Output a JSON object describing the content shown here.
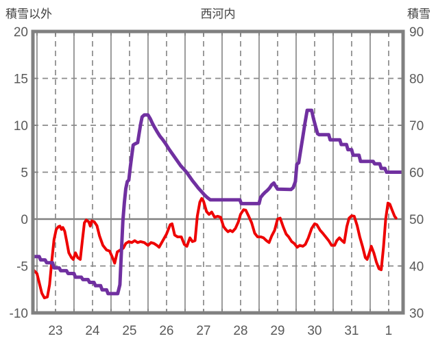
{
  "header": {
    "left_axis_title": "積雪以外",
    "chart_title": "西河内",
    "right_axis_title": "積雪"
  },
  "chart_data": {
    "type": "line",
    "title": "西河内",
    "x_axis": {
      "start": 22.89,
      "end": 32.89,
      "day_gridlines": [
        23,
        24,
        25,
        26,
        27,
        28,
        29,
        30,
        31,
        32
      ],
      "day_labels": [
        "23",
        "24",
        "25",
        "26",
        "27",
        "28",
        "29",
        "30",
        "31",
        "1"
      ],
      "grid_style": "solid at day boundaries, dashed at half days, inward ticks top and bottom"
    },
    "y_left": {
      "label": "積雪以外",
      "min": -10,
      "max": 20,
      "ticks": [
        20,
        15,
        10,
        5,
        0,
        -5,
        -10
      ],
      "zero_line": "solid gray, other gridlines dashed"
    },
    "y_right": {
      "label": "積雪",
      "min": 30,
      "max": 90,
      "ticks": [
        90,
        80,
        70,
        60,
        50,
        40,
        30
      ]
    },
    "series": [
      {
        "name": "積雪以外",
        "axis": "left",
        "color": "#ee0000",
        "points": [
          [
            22.9,
            -5.4
          ],
          [
            23.0,
            -5.8
          ],
          [
            23.05,
            -6.6
          ],
          [
            23.13,
            -7.9
          ],
          [
            23.2,
            -8.4
          ],
          [
            23.28,
            -8.3
          ],
          [
            23.34,
            -7.0
          ],
          [
            23.4,
            -4.5
          ],
          [
            23.46,
            -2.2
          ],
          [
            23.52,
            -1.1
          ],
          [
            23.58,
            -0.8
          ],
          [
            23.62,
            -0.75
          ],
          [
            23.66,
            -1.1
          ],
          [
            23.7,
            -0.9
          ],
          [
            23.75,
            -1.3
          ],
          [
            23.8,
            -2.3
          ],
          [
            23.86,
            -3.6
          ],
          [
            23.93,
            -4.1
          ],
          [
            23.98,
            -4.3
          ],
          [
            24.04,
            -3.6
          ],
          [
            24.1,
            -4.1
          ],
          [
            24.17,
            -4.3
          ],
          [
            24.22,
            -2.5
          ],
          [
            24.28,
            -0.4
          ],
          [
            24.33,
            -0.1
          ],
          [
            24.4,
            -0.3
          ],
          [
            24.44,
            -0.75
          ],
          [
            24.48,
            -0.2
          ],
          [
            24.55,
            -0.3
          ],
          [
            24.62,
            -0.7
          ],
          [
            24.69,
            -1.8
          ],
          [
            24.78,
            -2.8
          ],
          [
            24.88,
            -3.3
          ],
          [
            24.96,
            -3.4
          ],
          [
            25.04,
            -4.1
          ],
          [
            25.1,
            -4.7
          ],
          [
            25.17,
            -3.5
          ],
          [
            25.25,
            -3.3
          ],
          [
            25.33,
            -3.1
          ],
          [
            25.4,
            -2.6
          ],
          [
            25.48,
            -2.4
          ],
          [
            25.56,
            -2.5
          ],
          [
            25.64,
            -2.3
          ],
          [
            25.72,
            -2.5
          ],
          [
            25.8,
            -2.4
          ],
          [
            25.9,
            -2.5
          ],
          [
            26.0,
            -2.8
          ],
          [
            26.08,
            -2.5
          ],
          [
            26.16,
            -2.6
          ],
          [
            26.24,
            -2.8
          ],
          [
            26.3,
            -3.0
          ],
          [
            26.4,
            -2.3
          ],
          [
            26.5,
            -1.6
          ],
          [
            26.6,
            -0.6
          ],
          [
            26.65,
            -0.5
          ],
          [
            26.72,
            -1.7
          ],
          [
            26.8,
            -1.9
          ],
          [
            26.9,
            -1.9
          ],
          [
            26.98,
            -2.7
          ],
          [
            27.05,
            -2.9
          ],
          [
            27.13,
            -2.0
          ],
          [
            27.2,
            -2.4
          ],
          [
            27.27,
            -2.3
          ],
          [
            27.33,
            0.3
          ],
          [
            27.4,
            1.8
          ],
          [
            27.45,
            2.2
          ],
          [
            27.5,
            1.9
          ],
          [
            27.58,
            0.8
          ],
          [
            27.65,
            0.5
          ],
          [
            27.72,
            0.75
          ],
          [
            27.8,
            0.2
          ],
          [
            27.88,
            0.3
          ],
          [
            27.96,
            0.2
          ],
          [
            28.04,
            -0.8
          ],
          [
            28.1,
            -1.1
          ],
          [
            28.16,
            -1.35
          ],
          [
            28.22,
            -1.2
          ],
          [
            28.28,
            -1.35
          ],
          [
            28.36,
            -1.0
          ],
          [
            28.44,
            -0.3
          ],
          [
            28.5,
            0.5
          ],
          [
            28.58,
            1.0
          ],
          [
            28.64,
            0.95
          ],
          [
            28.72,
            0.3
          ],
          [
            28.8,
            -0.4
          ],
          [
            28.88,
            -1.5
          ],
          [
            28.96,
            -1.9
          ],
          [
            29.05,
            -1.9
          ],
          [
            29.12,
            -2.0
          ],
          [
            29.2,
            -2.3
          ],
          [
            29.27,
            -2.5
          ],
          [
            29.34,
            -1.8
          ],
          [
            29.42,
            -1.2
          ],
          [
            29.5,
            0.0
          ],
          [
            29.57,
            0.1
          ],
          [
            29.65,
            -0.8
          ],
          [
            29.73,
            -1.6
          ],
          [
            29.8,
            -1.9
          ],
          [
            29.88,
            -2.4
          ],
          [
            29.95,
            -2.6
          ],
          [
            30.03,
            -3.0
          ],
          [
            30.1,
            -2.8
          ],
          [
            30.18,
            -2.9
          ],
          [
            30.25,
            -2.7
          ],
          [
            30.33,
            -2.0
          ],
          [
            30.42,
            -1.0
          ],
          [
            30.5,
            -0.5
          ],
          [
            30.56,
            -0.6
          ],
          [
            30.65,
            -1.2
          ],
          [
            30.72,
            -1.5
          ],
          [
            30.8,
            -1.9
          ],
          [
            30.88,
            -2.3
          ],
          [
            30.96,
            -2.8
          ],
          [
            31.04,
            -2.8
          ],
          [
            31.1,
            -2.3
          ],
          [
            31.17,
            -2.0
          ],
          [
            31.24,
            -2.3
          ],
          [
            31.3,
            -2.5
          ],
          [
            31.37,
            -0.8
          ],
          [
            31.43,
            0.1
          ],
          [
            31.5,
            0.35
          ],
          [
            31.57,
            0.3
          ],
          [
            31.65,
            -0.7
          ],
          [
            31.72,
            -1.9
          ],
          [
            31.8,
            -3.0
          ],
          [
            31.87,
            -4.1
          ],
          [
            31.92,
            -4.3
          ],
          [
            31.98,
            -3.6
          ],
          [
            32.03,
            -2.9
          ],
          [
            32.1,
            -3.6
          ],
          [
            32.17,
            -4.6
          ],
          [
            32.24,
            -5.3
          ],
          [
            32.3,
            -5.4
          ],
          [
            32.36,
            -3.0
          ],
          [
            32.42,
            0.0
          ],
          [
            32.48,
            1.7
          ],
          [
            32.53,
            1.6
          ],
          [
            32.6,
            0.9
          ],
          [
            32.66,
            0.3
          ],
          [
            32.7,
            0.1
          ]
        ]
      },
      {
        "name": "積雪",
        "axis": "right",
        "color": "#7030a0",
        "points": [
          [
            22.9,
            42
          ],
          [
            23.06,
            42
          ],
          [
            23.1,
            41.3
          ],
          [
            23.22,
            41.3
          ],
          [
            23.26,
            40.7
          ],
          [
            23.42,
            40.7
          ],
          [
            23.46,
            39.6
          ],
          [
            23.6,
            39.6
          ],
          [
            23.64,
            39.0
          ],
          [
            23.8,
            39.0
          ],
          [
            23.84,
            38.4
          ],
          [
            24.0,
            38.4
          ],
          [
            24.04,
            37.6
          ],
          [
            24.2,
            37.6
          ],
          [
            24.24,
            37.1
          ],
          [
            24.38,
            37.1
          ],
          [
            24.42,
            36.5
          ],
          [
            24.54,
            36.5
          ],
          [
            24.58,
            35.8
          ],
          [
            24.72,
            35.8
          ],
          [
            24.76,
            34.9
          ],
          [
            24.88,
            34.9
          ],
          [
            24.92,
            34.1
          ],
          [
            25.18,
            34.1
          ],
          [
            25.24,
            36.0
          ],
          [
            25.28,
            43.0
          ],
          [
            25.32,
            49.5
          ],
          [
            25.36,
            53.5
          ],
          [
            25.4,
            56.5
          ],
          [
            25.44,
            58.0
          ],
          [
            25.48,
            58.3
          ],
          [
            25.52,
            61.0
          ],
          [
            25.56,
            63.5
          ],
          [
            25.6,
            65.8
          ],
          [
            25.64,
            66.0
          ],
          [
            25.72,
            66.3
          ],
          [
            25.76,
            68.3
          ],
          [
            25.8,
            70.2
          ],
          [
            25.84,
            71.8
          ],
          [
            25.9,
            72.2
          ],
          [
            26.0,
            72.2
          ],
          [
            26.06,
            71.4
          ],
          [
            26.12,
            70.4
          ],
          [
            26.18,
            69.5
          ],
          [
            26.24,
            68.7
          ],
          [
            26.32,
            67.7
          ],
          [
            26.4,
            66.9
          ],
          [
            26.48,
            66.0
          ],
          [
            26.56,
            65.0
          ],
          [
            26.64,
            64.1
          ],
          [
            26.72,
            63.2
          ],
          [
            26.8,
            62.3
          ],
          [
            26.88,
            61.4
          ],
          [
            26.96,
            60.7
          ],
          [
            27.04,
            60.0
          ],
          [
            27.12,
            59.1
          ],
          [
            27.2,
            58.2
          ],
          [
            27.28,
            57.4
          ],
          [
            27.36,
            56.6
          ],
          [
            27.44,
            55.9
          ],
          [
            27.52,
            55.2
          ],
          [
            27.6,
            54.6
          ],
          [
            27.68,
            54.1
          ],
          [
            28.48,
            54.1
          ],
          [
            28.52,
            53.3
          ],
          [
            29.0,
            53.3
          ],
          [
            29.04,
            54.6
          ],
          [
            29.1,
            55.2
          ],
          [
            29.16,
            55.7
          ],
          [
            29.22,
            56.1
          ],
          [
            29.28,
            56.6
          ],
          [
            29.34,
            57.3
          ],
          [
            29.4,
            57.7
          ],
          [
            29.44,
            57.1
          ],
          [
            29.5,
            56.4
          ],
          [
            29.86,
            56.3
          ],
          [
            29.92,
            56.7
          ],
          [
            29.98,
            58.0
          ],
          [
            30.02,
            61.7
          ],
          [
            30.07,
            62.0
          ],
          [
            30.12,
            64.5
          ],
          [
            30.18,
            67.5
          ],
          [
            30.24,
            70.5
          ],
          [
            30.3,
            73.2
          ],
          [
            30.42,
            73.2
          ],
          [
            30.47,
            71.4
          ],
          [
            30.53,
            69.6
          ],
          [
            30.58,
            68.2
          ],
          [
            30.62,
            68.0
          ],
          [
            30.88,
            68.0
          ],
          [
            30.92,
            66.9
          ],
          [
            31.18,
            66.9
          ],
          [
            31.22,
            65.9
          ],
          [
            31.36,
            65.9
          ],
          [
            31.4,
            64.8
          ],
          [
            31.5,
            64.8
          ],
          [
            31.54,
            63.6
          ],
          [
            31.7,
            63.6
          ],
          [
            31.74,
            62.3
          ],
          [
            32.08,
            62.3
          ],
          [
            32.12,
            61.8
          ],
          [
            32.26,
            61.8
          ],
          [
            32.3,
            60.8
          ],
          [
            32.4,
            60.8
          ],
          [
            32.44,
            60.0
          ],
          [
            32.88,
            60.0
          ]
        ]
      }
    ],
    "colors": {
      "border": "#808080",
      "grid": "#8a8a8a",
      "zero_line": "#808080",
      "tick_text": "#595959",
      "title_text": "#404040",
      "background": "#ffffff"
    }
  }
}
